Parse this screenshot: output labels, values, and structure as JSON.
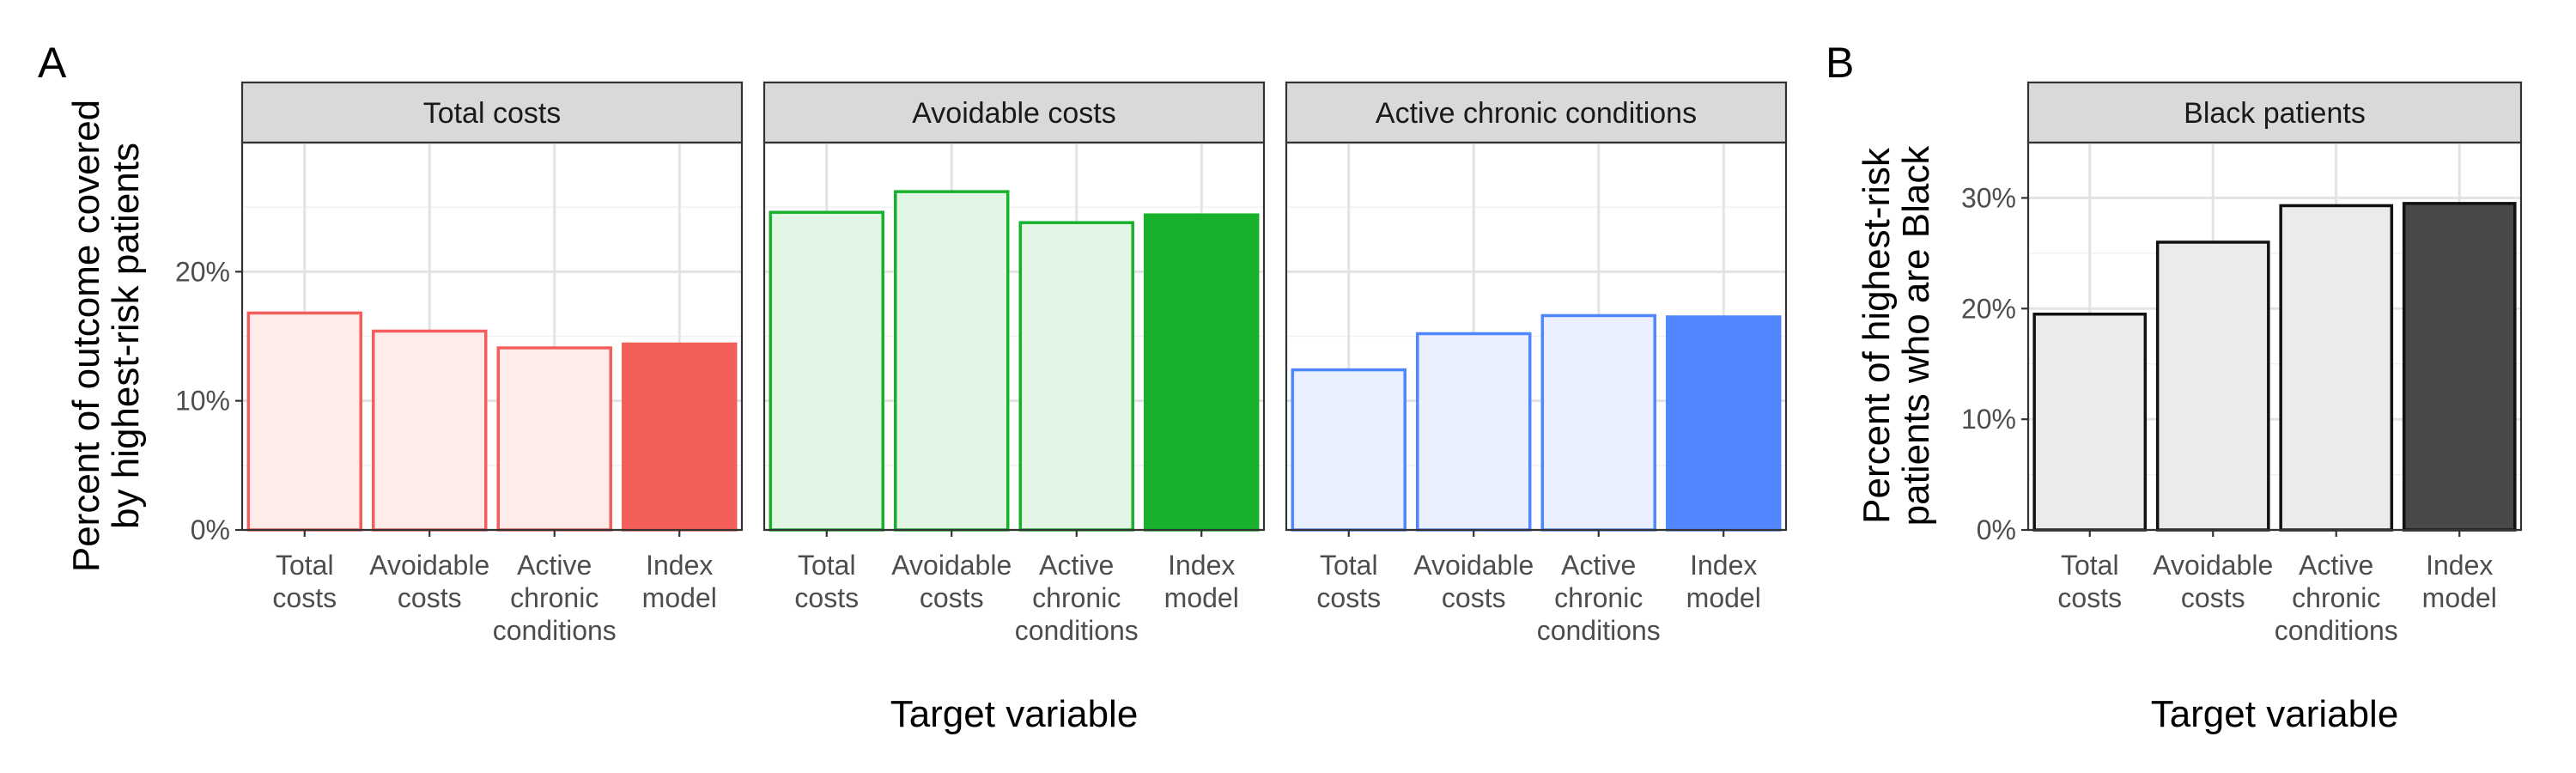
{
  "panel_labels": {
    "a": "A",
    "b": "B"
  },
  "colors": {
    "total_costs": "#f35e5a",
    "avoidable_costs": "#17b12b",
    "active_chronic": "#5086ff",
    "black": "#111111",
    "black_fill": "#ebebeb",
    "black_index_fill": "#484848"
  },
  "chart_data": [
    {
      "type": "bar",
      "panel": "A",
      "xlabel": "Target variable",
      "ylabel": [
        "Percent of outcome covered",
        "by highest-risk patients"
      ],
      "ylim": [
        0,
        30
      ],
      "yticks": [
        0,
        10,
        20
      ],
      "ytick_labels": [
        "0%",
        "10%",
        "20%"
      ],
      "grid": true,
      "categories": [
        [
          "Total",
          "costs"
        ],
        [
          "Avoidable",
          "costs"
        ],
        [
          "Active",
          "chronic",
          "conditions"
        ],
        [
          "Index",
          "model"
        ]
      ],
      "series": [
        {
          "name": "Total costs",
          "values": [
            16.8,
            15.4,
            14.1,
            14.4
          ]
        },
        {
          "name": "Avoidable costs",
          "values": [
            24.6,
            26.2,
            23.8,
            24.4
          ]
        },
        {
          "name": "Active chronic conditions",
          "values": [
            12.4,
            15.2,
            16.6,
            16.5
          ]
        }
      ]
    },
    {
      "type": "bar",
      "panel": "B",
      "xlabel": "Target variable",
      "ylabel": [
        "Percent of highest-risk",
        "patients who are Black"
      ],
      "ylim": [
        0,
        35
      ],
      "yticks": [
        0,
        10,
        20,
        30
      ],
      "ytick_labels": [
        "0%",
        "10%",
        "20%",
        "30%"
      ],
      "grid": true,
      "categories": [
        [
          "Total",
          "costs"
        ],
        [
          "Avoidable",
          "costs"
        ],
        [
          "Active",
          "chronic",
          "conditions"
        ],
        [
          "Index",
          "model"
        ]
      ],
      "series": [
        {
          "name": "Black patients",
          "values": [
            19.5,
            26.0,
            29.3,
            29.5
          ]
        }
      ]
    }
  ]
}
